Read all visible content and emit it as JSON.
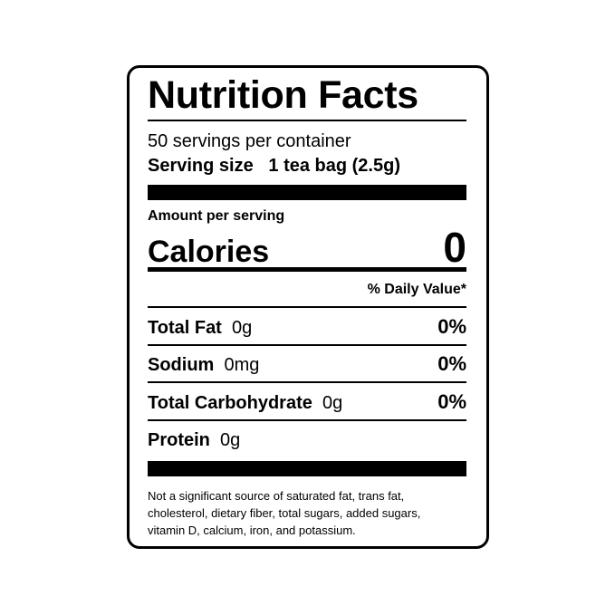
{
  "header": {
    "title": "Nutrition Facts",
    "servings": "50 servings per container",
    "serving_size_label": "Serving size",
    "serving_size_value": "1 tea bag (2.5g)"
  },
  "calories": {
    "amount_label": "Amount per serving",
    "label": "Calories",
    "value": 0
  },
  "daily_value_header": "% Daily Value*",
  "nutrients": [
    {
      "name": "Total Fat",
      "amount": "0g",
      "daily_value": "0%"
    },
    {
      "name": "Sodium",
      "amount": "0mg",
      "daily_value": "0%"
    },
    {
      "name": "Total Carbohydrate",
      "amount": "0g",
      "daily_value": "0%"
    },
    {
      "name": "Protein",
      "amount": "0g"
    }
  ],
  "footnote_lines": [
    "Not a significant source of saturated fat, trans fat,",
    "cholesterol, dietary fiber, total sugars, added sugars,",
    "vitamin D, calcium, iron, and potassium."
  ]
}
